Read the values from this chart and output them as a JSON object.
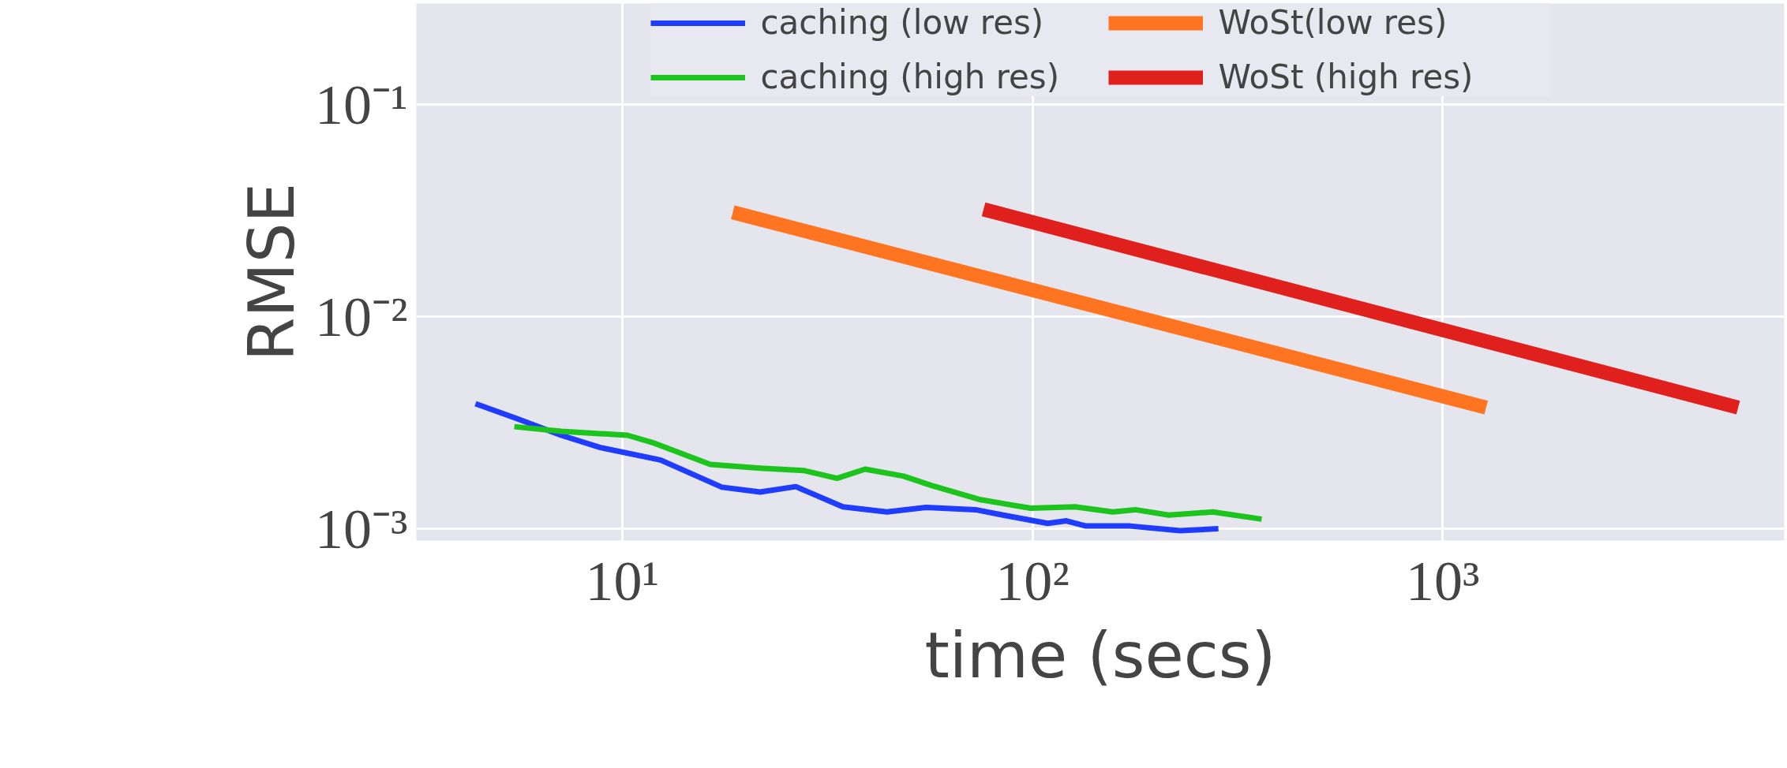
{
  "chart_data": {
    "type": "line",
    "xlabel": "time (secs)",
    "ylabel": "RMSE",
    "log": "xy",
    "grid": true,
    "legend": "top",
    "line_style": "solid",
    "marker": "none",
    "xlim": [
      3.15,
      6800
    ],
    "ylim": [
      0.00088,
      0.3
    ],
    "xticks": [
      {
        "value": 10,
        "label": "10¹"
      },
      {
        "value": 100,
        "label": "10²"
      },
      {
        "value": 1000,
        "label": "10³"
      }
    ],
    "yticks": [
      {
        "value": 0.001,
        "label": "10⁻³"
      },
      {
        "value": 0.01,
        "label": "10⁻²"
      },
      {
        "value": 0.1,
        "label": "10⁻¹"
      }
    ],
    "series": [
      {
        "name": "caching (low res)",
        "color": "#1f3cff",
        "x": [
          4.39,
          5.53,
          7.1,
          8.82,
          12.4,
          17.5,
          21.7,
          26.5,
          34.5,
          44.2,
          55.0,
          72.6,
          84.8,
          109,
          121,
          135,
          173,
          229,
          284
        ],
        "values": [
          0.00389,
          0.00331,
          0.00276,
          0.00242,
          0.00211,
          0.00157,
          0.00149,
          0.00158,
          0.00127,
          0.0012,
          0.00126,
          0.00123,
          0.00116,
          0.00106,
          0.00109,
          0.00103,
          0.00103,
          0.00098,
          0.001
        ]
      },
      {
        "name": "caching (high res)",
        "color": "#1ec41e",
        "x": [
          5.46,
          7.1,
          10.3,
          12.0,
          16.4,
          21.7,
          27.8,
          33.4,
          39.1,
          48.5,
          56.7,
          74.8,
          99,
          127,
          157,
          178,
          215,
          275,
          362
        ],
        "values": [
          0.00303,
          0.00288,
          0.00276,
          0.00253,
          0.00201,
          0.00193,
          0.00188,
          0.00173,
          0.00191,
          0.00177,
          0.0016,
          0.00137,
          0.00125,
          0.00127,
          0.0012,
          0.00123,
          0.00116,
          0.0012,
          0.00111
        ]
      },
      {
        "name": "WoSt(low res)",
        "color": "#ff7420",
        "x": [
          18.6,
          1276
        ],
        "values": [
          0.0311,
          0.00373
        ]
      },
      {
        "name": "WoSt (high res)",
        "color": "#e0201c",
        "x": [
          76,
          5250
        ],
        "values": [
          0.0321,
          0.00373
        ]
      }
    ]
  }
}
